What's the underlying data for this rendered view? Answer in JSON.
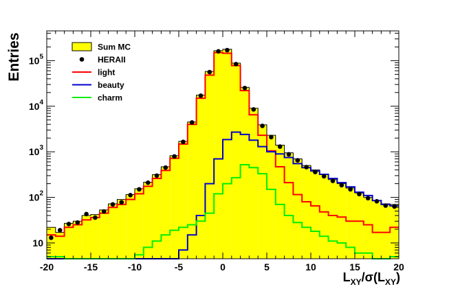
{
  "chart_data": {
    "type": "histogram",
    "title": "",
    "xlabel": {
      "main": "L",
      "sub1": "XY",
      "mid": "/σ(L",
      "sub2": "XY",
      "end": ")"
    },
    "ylabel": "Entries",
    "xlim": [
      -20,
      20
    ],
    "ylim": [
      4.5,
      450000
    ],
    "yscale": "log",
    "bin_width": 1,
    "bin_edges_start": -20,
    "x_ticks": [
      -20,
      -15,
      -10,
      -5,
      0,
      5,
      10,
      15,
      20
    ],
    "x_tick_labels": [
      "-20",
      "-15",
      "-10",
      "-5",
      "0",
      "5",
      "10",
      "15",
      "20"
    ],
    "y_tick_labels": [
      {
        "value": 10,
        "base": "10",
        "exp": ""
      },
      {
        "value": 100,
        "base": "10",
        "exp": "2"
      },
      {
        "value": 1000,
        "base": "10",
        "exp": "3"
      },
      {
        "value": 10000,
        "base": "10",
        "exp": "4"
      },
      {
        "value": 100000,
        "base": "10",
        "exp": "5"
      }
    ],
    "legend": {
      "placement": "top-left",
      "entries": [
        {
          "label": "Sum MC",
          "style": "fill"
        },
        {
          "label": "HERAII",
          "style": "marker"
        },
        {
          "label": "light",
          "style": "line"
        },
        {
          "label": "beauty",
          "style": "line"
        },
        {
          "label": "charm",
          "style": "line"
        }
      ]
    },
    "colors": {
      "sum_mc": "#ffff00",
      "light": "#ff0000",
      "beauty": "#0000cc",
      "charm": "#00ee00",
      "data": "#000000"
    },
    "series": [
      {
        "name": "Sum MC",
        "style": "filled-histogram",
        "values": [
          22,
          17,
          27,
          30,
          40,
          42,
          53,
          72,
          90,
          115,
          155,
          215,
          315,
          470,
          820,
          1700,
          4500,
          17500,
          58000,
          165000,
          178000,
          88000,
          26000,
          9000,
          3900,
          2300,
          1400,
          950,
          700,
          500,
          400,
          320,
          245,
          200,
          160,
          125,
          100,
          85,
          72,
          70
        ]
      },
      {
        "name": "HERAII",
        "style": "points",
        "values": [
          13,
          19,
          26,
          28,
          43,
          36,
          49,
          70,
          78,
          112,
          150,
          210,
          300,
          450,
          790,
          1650,
          4400,
          17000,
          56000,
          160000,
          170000,
          84000,
          25000,
          8500,
          3700,
          2100,
          1300,
          880,
          650,
          460,
          360,
          290,
          230,
          185,
          150,
          118,
          96,
          82,
          66,
          63
        ]
      },
      {
        "name": "light",
        "style": "step-line",
        "values": [
          15,
          14,
          22,
          25,
          32,
          36,
          45,
          60,
          70,
          90,
          120,
          175,
          260,
          390,
          720,
          1480,
          4000,
          15000,
          48000,
          150000,
          145000,
          78000,
          22000,
          6500,
          2300,
          1050,
          470,
          210,
          115,
          80,
          65,
          48,
          40,
          37,
          30,
          30,
          25,
          17,
          17,
          22
        ]
      },
      {
        "name": "beauty",
        "style": "step-line",
        "values": [
          4.5,
          4.5,
          4.5,
          4.5,
          4.5,
          4.5,
          4.5,
          4.5,
          4.5,
          4.5,
          4.5,
          4.5,
          4.5,
          4.5,
          4.5,
          7,
          15,
          40,
          200,
          700,
          1850,
          2700,
          2400,
          1800,
          1300,
          1000,
          900,
          750,
          550,
          450,
          380,
          320,
          260,
          210,
          170,
          130,
          110,
          85,
          70,
          65
        ]
      },
      {
        "name": "charm",
        "style": "step-line",
        "values": [
          5,
          5,
          4.5,
          4.5,
          4.5,
          4.5,
          4.5,
          4.5,
          4.5,
          4.5,
          5.5,
          8,
          11,
          15,
          19,
          22,
          25,
          30,
          45,
          120,
          200,
          270,
          520,
          450,
          330,
          150,
          70,
          40,
          28,
          22,
          18,
          14,
          11,
          10,
          8,
          6,
          6,
          4.5,
          4.5,
          5
        ]
      }
    ]
  }
}
